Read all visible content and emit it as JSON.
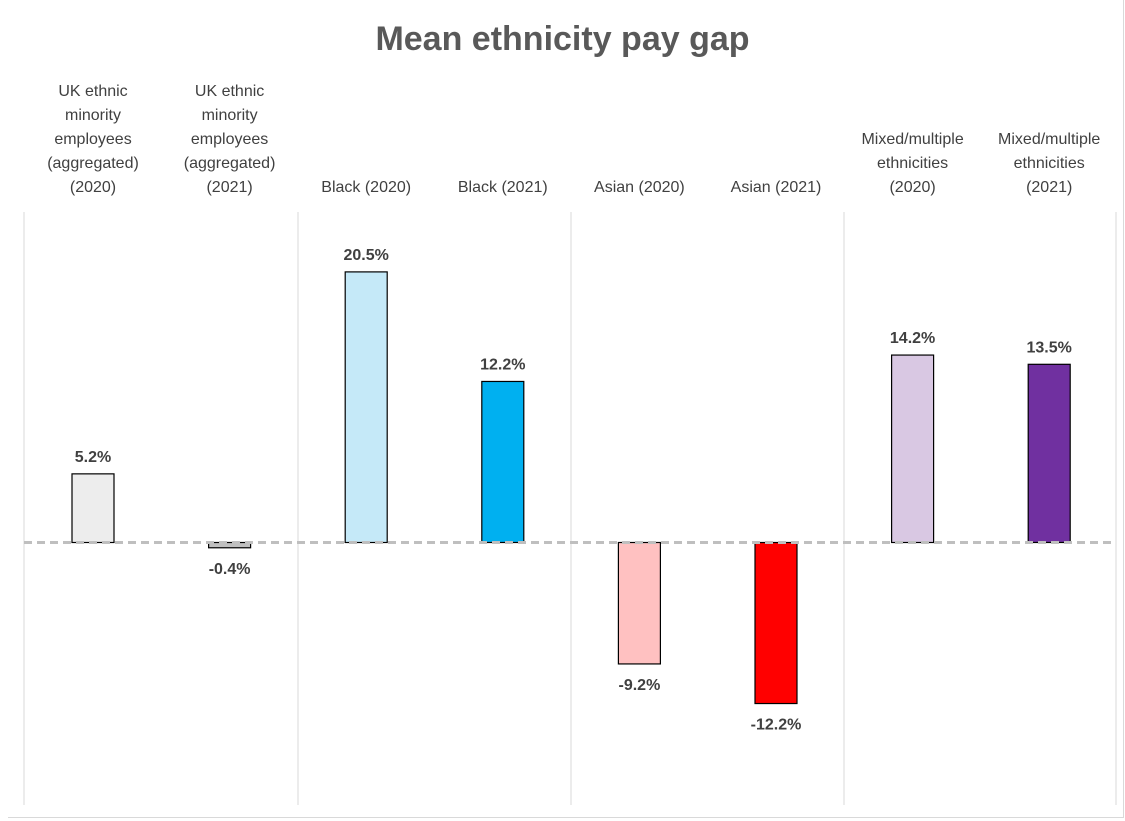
{
  "chart_data": {
    "type": "bar",
    "title": "Mean ethnicity pay gap",
    "xlabel": "",
    "ylabel": "",
    "categories": [
      "UK ethnic\nminority\nemployees\n(aggregated)\n(2020)",
      "UK ethnic\nminority\nemployees\n(aggregated)\n(2021)",
      "Black (2020)",
      "Black (2021)",
      "Asian (2020)",
      "Asian (2021)",
      "Mixed/multiple\nethnicities\n(2020)",
      "Mixed/multiple\nethnicities\n(2021)"
    ],
    "values": [
      5.2,
      -0.4,
      20.5,
      12.2,
      -9.2,
      -12.2,
      14.2,
      13.5
    ],
    "data_labels": [
      "5.2%",
      "-0.4%",
      "20.5%",
      "12.2%",
      "-9.2%",
      "-12.2%",
      "14.2%",
      "13.5%"
    ],
    "bar_colors": [
      "#ededed",
      "#bfbfbf",
      "#c5e9f8",
      "#00b0f0",
      "#ffc1c1",
      "#ff0000",
      "#d9c8e3",
      "#7030a0"
    ],
    "ylim": [
      -20,
      25
    ],
    "grid": false,
    "legend": "none",
    "zero_line": "dashed",
    "group_dividers": true
  }
}
